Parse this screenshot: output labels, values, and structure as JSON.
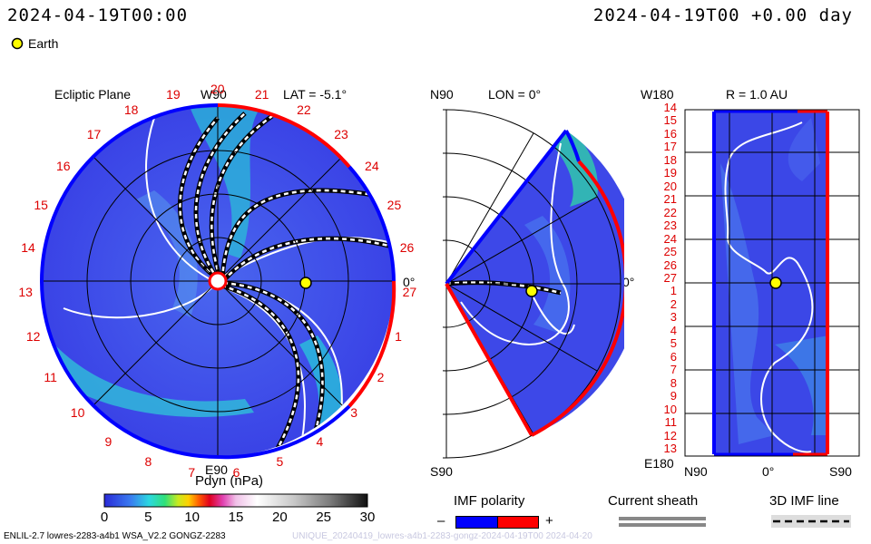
{
  "header": {
    "left_timestamp": "2024-04-19T00:00",
    "right_timestamp": "2024-04-19T00 +0.00 day"
  },
  "legend": {
    "earth_label": "Earth",
    "earth_color": "#ffff00"
  },
  "panels": {
    "ecliptic": {
      "title": "Ecliptic Plane",
      "top_label": "W90",
      "lat_label": "LAT = -5.1°",
      "bottom_label": "E90",
      "right_label": "0°",
      "carrington_ticks": [
        "20",
        "21",
        "22",
        "23",
        "24",
        "25",
        "26",
        "27",
        "1",
        "2",
        "3",
        "4",
        "5",
        "6",
        "7",
        "8",
        "9",
        "10",
        "11",
        "12",
        "13",
        "14",
        "15",
        "16",
        "17",
        "18",
        "19"
      ]
    },
    "meridional": {
      "top_left": "N90",
      "lon_label": "LON = 0°",
      "right_label": "0°",
      "bottom_left": "S90"
    },
    "r_map": {
      "top_left": "W180",
      "r_label": "R = 1.0 AU",
      "bottom_left": "E180",
      "x_left": "N90",
      "x_mid": "0°",
      "x_right": "S90",
      "y_ticks": [
        "14",
        "15",
        "16",
        "17",
        "18",
        "19",
        "20",
        "21",
        "22",
        "23",
        "24",
        "25",
        "26",
        "27",
        "1",
        "2",
        "3",
        "4",
        "5",
        "6",
        "7",
        "8",
        "9",
        "10",
        "11",
        "12",
        "13"
      ]
    }
  },
  "colorbar": {
    "title": "Pdyn (nPa)",
    "ticks": [
      "0",
      "5",
      "10",
      "15",
      "20",
      "25",
      "30"
    ]
  },
  "imf": {
    "title": "IMF polarity",
    "minus": "–",
    "plus": "+",
    "negative_color": "#0000ff",
    "positive_color": "#ff0000"
  },
  "sheath": {
    "title": "Current sheath"
  },
  "imf_line": {
    "title": "3D IMF line"
  },
  "footer": {
    "left": "ENLIL-2.7 lowres-2283-a4b1 WSA_V2.2 GONGZ-2283",
    "right": "UNIQUE_20240419_lowres-a4b1-2283-gongz-2024-04-19T00 2024-04-20"
  },
  "colors": {
    "background_field": "#3a3fe8",
    "accent_cyan": "#33e0e0",
    "sector_red": "#ff0000",
    "sector_blue": "#0000ff",
    "label_red": "#dd0000"
  }
}
